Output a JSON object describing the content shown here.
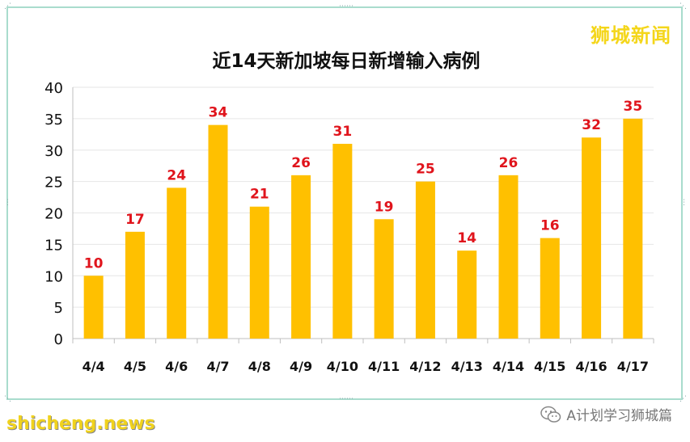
{
  "brand": "狮城新闻",
  "footer": {
    "source_text": "shicheng.news",
    "account": "A计划学习狮城篇"
  },
  "icons": {
    "account": "wechat-icon"
  },
  "colors": {
    "bar": "#ffc000",
    "value_label": "#e0141c",
    "brand": "#f4d61a",
    "frame": "#a9dccd"
  },
  "chart_data": {
    "type": "bar",
    "title": "近14天新加坡每日新增输入病例",
    "categories": [
      "4/4",
      "4/5",
      "4/6",
      "4/7",
      "4/8",
      "4/9",
      "4/10",
      "4/11",
      "4/12",
      "4/13",
      "4/14",
      "4/15",
      "4/16",
      "4/17"
    ],
    "values": [
      10,
      17,
      24,
      34,
      21,
      26,
      31,
      19,
      25,
      14,
      26,
      16,
      32,
      35
    ],
    "ylim": [
      0,
      40
    ],
    "yticks": [
      0,
      5,
      10,
      15,
      20,
      25,
      30,
      35,
      40
    ],
    "xlabel": "",
    "ylabel": "",
    "grid": true,
    "data_labels": true,
    "legend": "none"
  }
}
